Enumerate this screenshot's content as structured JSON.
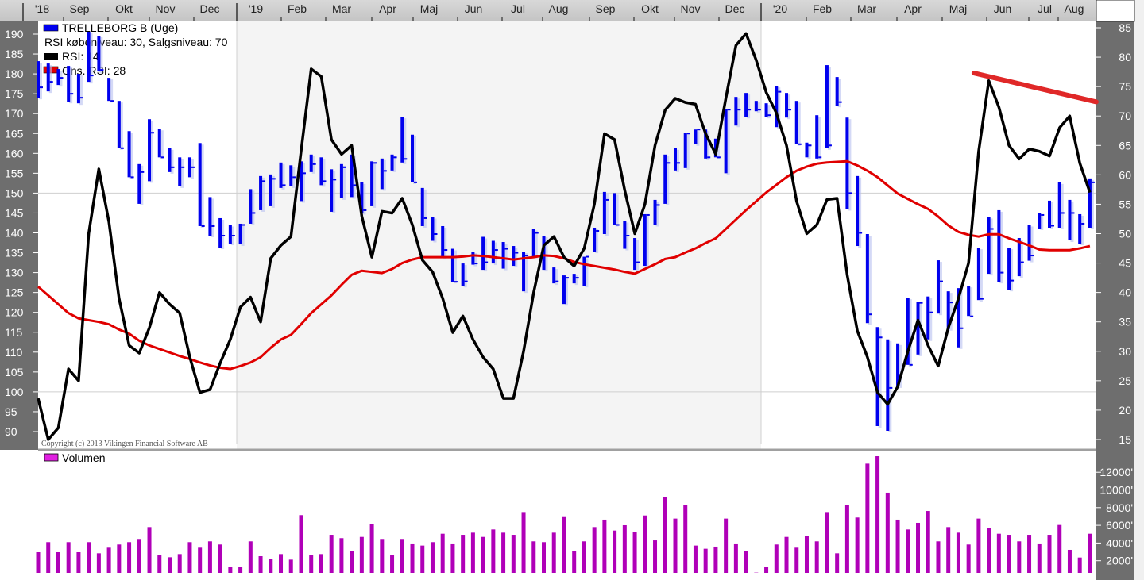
{
  "legend": {
    "price": "TRELLEBORG B (Uge)",
    "rsi_levels": "RSI købeniveau: 30, Salgsniveau: 70",
    "rsi": "RSI: 14",
    "rsi_avg": "Gns. RSI: 28",
    "volume": "Volumen"
  },
  "copyright": "Copyright (c) 2013 Vikingen Financial Software AB",
  "colors": {
    "price": "#0000ee",
    "rsi": "#000000",
    "rsi_avg": "#e00000",
    "trendline": "#e02828",
    "volume": "#b000b8",
    "axis_bg": "#6e6e6e"
  },
  "chart_data": [
    {
      "type": "ohlc-bar",
      "series_name": "TRELLEBORG B (Uge)",
      "interval": "weekly",
      "x_tick_labels": [
        "'18",
        "Sep",
        "Okt",
        "Nov",
        "Dec",
        "'19",
        "Feb",
        "Mar",
        "Apr",
        "Maj",
        "Jun",
        "Jul",
        "Aug",
        "Sep",
        "Okt",
        "Nov",
        "Dec",
        "'20",
        "Feb",
        "Mar",
        "Apr",
        "Maj",
        "Jun",
        "Jul",
        "Aug"
      ],
      "y_axis": "left",
      "ylim": [
        87,
        195
      ],
      "y_ticks": [
        190,
        185,
        180,
        175,
        170,
        165,
        160,
        155,
        150,
        145,
        140,
        135,
        130,
        125,
        120,
        115,
        110,
        105,
        100,
        95,
        90
      ],
      "gridlines": [
        150,
        100
      ],
      "high": [
        183.2,
        182.6,
        181.2,
        182,
        180,
        190.6,
        189.6,
        179,
        173.2,
        165.6,
        157.3,
        168.6,
        166.2,
        161.3,
        159,
        159,
        162.6,
        149,
        143.7,
        142,
        142.3,
        151,
        154.3,
        154.7,
        157.7,
        157,
        158,
        159.7,
        159,
        156,
        157.3,
        159.7,
        152.7,
        158,
        158.7,
        159.7,
        169.2,
        164.7,
        151.3,
        144,
        141.7,
        136,
        132.3,
        135.3,
        139,
        138,
        137.7,
        136.7,
        135.3,
        141,
        139.3,
        131.3,
        129.3,
        129.7,
        134,
        141.3,
        150.3,
        150,
        143,
        138.7,
        144.7,
        148.3,
        159.7,
        161.3,
        165.2,
        166,
        166,
        163.7,
        171.2,
        174.2,
        175.2,
        173.2,
        172.6,
        177,
        175.2,
        173.2,
        162.7,
        169.6,
        182.2,
        179.2,
        169,
        154.3,
        139.7,
        116.3,
        113.2,
        112.2,
        123.7,
        122.7,
        124,
        133.1,
        125.3,
        126.1,
        126.7,
        136.3,
        144,
        145.7,
        136.3,
        138.7,
        142,
        144.9,
        148.1,
        152.7,
        148.3,
        144.7,
        153.7
      ],
      "low": [
        174,
        175.6,
        177.2,
        173,
        172.6,
        178,
        180.6,
        173.2,
        161.3,
        154,
        147.3,
        153,
        159,
        155.3,
        151.7,
        154,
        141.7,
        139.3,
        136.3,
        137.3,
        137.1,
        142.3,
        145.7,
        146.7,
        151.3,
        151.7,
        148,
        155.3,
        152,
        145.3,
        148.7,
        149,
        145,
        146.7,
        151,
        155.7,
        157.7,
        152.7,
        141.7,
        138,
        133.7,
        127.7,
        126.7,
        132,
        130.7,
        132.3,
        131,
        131.7,
        125.3,
        134,
        130.7,
        127.3,
        122.1,
        127.3,
        126.7,
        135.3,
        139.7,
        142,
        136,
        130.7,
        131.7,
        142,
        147.3,
        155.7,
        156.3,
        162.3,
        158.7,
        159,
        155,
        167,
        169.2,
        170.6,
        169.2,
        166.6,
        169,
        162.3,
        159,
        158.7,
        161.3,
        172,
        146,
        136.7,
        117.3,
        91.4,
        90.2,
        101.4,
        106.8,
        109.4,
        113.2,
        119.7,
        115.8,
        111.2,
        119.1,
        123.1,
        129.7,
        127.7,
        125.7,
        129.1,
        133,
        141.1,
        141.3,
        141.3,
        138.1,
        137.3,
        141.3
      ],
      "close": [
        176.6,
        178,
        179,
        175,
        174,
        179.6,
        181,
        173.2,
        161.3,
        154,
        155.3,
        165.2,
        159,
        156.5,
        156.5,
        156.5,
        141.7,
        141.7,
        139.3,
        139.3,
        142,
        145,
        153,
        153.6,
        152,
        154,
        155,
        157.3,
        153,
        153.4,
        156.5,
        152,
        145.7,
        157.6,
        155.6,
        159,
        158.6,
        152.7,
        143.7,
        139.7,
        135.7,
        127.7,
        127.8,
        132.3,
        132.6,
        135.7,
        136,
        135,
        134.3,
        140,
        137.4,
        127.8,
        128.7,
        128.7,
        134,
        140.5,
        148.3,
        142,
        139.3,
        132.6,
        144.5,
        147,
        157.6,
        157.6,
        165,
        166,
        159,
        159,
        171,
        171,
        171,
        171,
        169.6,
        175.5,
        171,
        162.3,
        162,
        159,
        162,
        172.9,
        150,
        140,
        119.5,
        113.7,
        101,
        104.3,
        106.8,
        122.4,
        120,
        127.8,
        122.5,
        116,
        119,
        123.4,
        141,
        130,
        128,
        132.6,
        134.3,
        144.5,
        141.8,
        145,
        145,
        142.3,
        152.7
      ]
    },
    {
      "type": "line",
      "y_axis": "right",
      "ylim": [
        13,
        87
      ],
      "y_ticks": [
        85,
        80,
        75,
        70,
        65,
        60,
        55,
        50,
        45,
        40,
        35,
        30,
        25,
        20,
        15
      ],
      "series": [
        {
          "name": "RSI: 14",
          "values": [
            22,
            15,
            17,
            27,
            25,
            50,
            61,
            52,
            39,
            31,
            29.7,
            34,
            40,
            38,
            36.5,
            29,
            23,
            23.5,
            28,
            32,
            37.5,
            39.2,
            35,
            45.8,
            48,
            49.5,
            64,
            78,
            76.7,
            66,
            63.5,
            65,
            53,
            46,
            53.8,
            53.5,
            56,
            51.5,
            45.5,
            43.5,
            39,
            33.2,
            36,
            32,
            29,
            27,
            22,
            22,
            30,
            40,
            48,
            49.5,
            46,
            44.5,
            47.5,
            55,
            67,
            66,
            57.4,
            50,
            55,
            65,
            71,
            73,
            72.3,
            72,
            67,
            63.5,
            73,
            82,
            84,
            79.5,
            74,
            70.5,
            65,
            55.5,
            50,
            51.5,
            55.8,
            56,
            43,
            33.5,
            29,
            23,
            21,
            24,
            30,
            35.3,
            31,
            27.5,
            34,
            39,
            45,
            64,
            76,
            71.5,
            65,
            62.7,
            64.4,
            64,
            63.2,
            68,
            70,
            62,
            57
          ]
        },
        {
          "name": "Gns. RSI: 28",
          "values": [
            41,
            39.5,
            38,
            36.5,
            35.6,
            35.3,
            35,
            34.6,
            33.7,
            33,
            31.8,
            31,
            30.4,
            29.8,
            29.2,
            28.7,
            28.1,
            27.6,
            27.2,
            27,
            27.5,
            28.1,
            29,
            30.6,
            32,
            32.8,
            34.6,
            36.5,
            38,
            39.5,
            41.3,
            43,
            43.7,
            43.5,
            43.3,
            44,
            45,
            45.6,
            46,
            46,
            46,
            46,
            46.1,
            46.3,
            46.2,
            46,
            45.8,
            45.6,
            45.8,
            46,
            46.3,
            46.2,
            45.8,
            45.2,
            44.8,
            44.5,
            44.2,
            43.9,
            43.5,
            43.2,
            44,
            44.8,
            45.7,
            46,
            46.8,
            47.5,
            48.4,
            49.2,
            50.8,
            52.4,
            54,
            55.5,
            57,
            58.3,
            59.6,
            60.7,
            61.4,
            61.9,
            62.1,
            62.2,
            62.3,
            61.6,
            60.7,
            59.6,
            58.2,
            56.8,
            55.9,
            55,
            54.2,
            52.9,
            51.4,
            50.3,
            49.8,
            49.5,
            49.9,
            49.9,
            49.2,
            48.6,
            48,
            47.3,
            47.2,
            47.2,
            47.2,
            47.5,
            47.9
          ]
        }
      ],
      "trendline": {
        "from_week": 94,
        "from_rsi": 77.3,
        "to_week": 105,
        "to_rsi": 72.4
      }
    },
    {
      "type": "bar",
      "series_name": "Volumen",
      "unit": "thousands",
      "y_ticks": [
        "12000'",
        "10000'",
        "8000'",
        "6000'",
        "4000'",
        "2000'"
      ],
      "y_tick_values": [
        12000,
        10000,
        8000,
        6000,
        4000,
        2000
      ],
      "values": [
        2960,
        4100,
        2960,
        4100,
        2960,
        4100,
        2840,
        3470,
        3830,
        4100,
        4460,
        5800,
        2600,
        2390,
        2750,
        4100,
        3470,
        4190,
        3830,
        1260,
        1260,
        4190,
        2510,
        2240,
        2750,
        2120,
        7150,
        2600,
        2750,
        4930,
        4550,
        3110,
        4690,
        6160,
        4460,
        2600,
        4460,
        3950,
        3710,
        4100,
        5050,
        3950,
        4930,
        5170,
        4690,
        5530,
        5170,
        4930,
        7500,
        4190,
        4100,
        5170,
        7020,
        3110,
        4190,
        5800,
        6640,
        5410,
        6010,
        5290,
        7110,
        4300,
        9180,
        6760,
        8340,
        3710,
        3350,
        3590,
        6760,
        3950,
        3110,
        660,
        1260,
        3830,
        4690,
        3470,
        4810,
        4190,
        7500,
        2840,
        8340,
        6880,
        12970,
        13810,
        9690,
        6640,
        5530,
        6280,
        7620,
        4190,
        5800,
        5170,
        3830,
        6760,
        5650,
        5050,
        4930,
        4190,
        4930,
        3950,
        4930,
        6040,
        3230,
        2360,
        5050
      ]
    }
  ]
}
